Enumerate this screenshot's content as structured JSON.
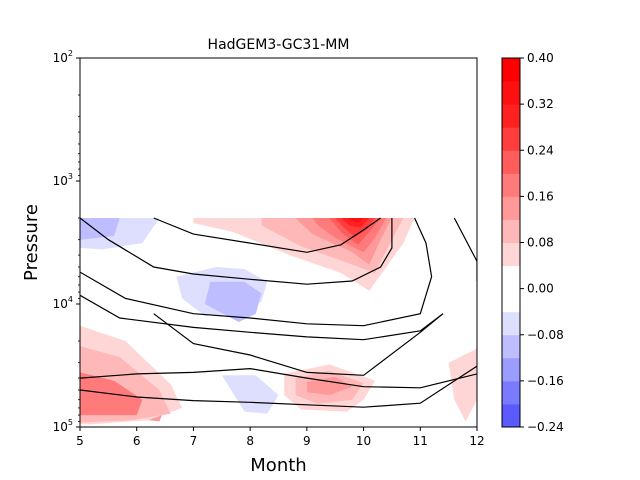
{
  "chart_data": {
    "type": "heatmap",
    "title": "HadGEM3-GC31-MM",
    "xlabel": "Month",
    "ylabel": "Pressure",
    "xlim": [
      5,
      12
    ],
    "ylim": [
      100000,
      100
    ],
    "y_scale": "log",
    "x_ticks": [
      5,
      6,
      7,
      8,
      9,
      10,
      11,
      12
    ],
    "x_tick_labels": [
      "5",
      "6",
      "7",
      "8",
      "9",
      "10",
      "11",
      "12"
    ],
    "y_ticks": [
      100,
      1000,
      10000,
      100000
    ],
    "y_tick_labels": [
      {
        "base": "10",
        "exp": "2"
      },
      {
        "base": "10",
        "exp": "3"
      },
      {
        "base": "10",
        "exp": "4"
      },
      {
        "base": "10",
        "exp": "5"
      }
    ],
    "grid": false,
    "data_top_pressure": 2000,
    "colorbar": {
      "levels": [
        -0.24,
        -0.2,
        -0.16,
        -0.12,
        -0.08,
        -0.04,
        0.0,
        0.04,
        0.08,
        0.12,
        0.16,
        0.2,
        0.24,
        0.28,
        0.32,
        0.36,
        0.4
      ],
      "colors": [
        "#5a5aff",
        "#7a7aff",
        "#9c9cff",
        "#bdbdff",
        "#dedeff",
        "#ffffff",
        "#ffffff",
        "#ffd6d6",
        "#ffb8b8",
        "#ff9999",
        "#ff7a7a",
        "#ff5c5c",
        "#ff3d3d",
        "#ff2020",
        "#ff1010",
        "#ff0000"
      ],
      "tick_values": [
        -0.24,
        -0.16,
        -0.08,
        0.0,
        0.08,
        0.16,
        0.24,
        0.32,
        0.4
      ],
      "tick_labels": [
        "−0.24",
        "−0.16",
        "−0.08",
        "0.00",
        "0.08",
        "0.16",
        "0.24",
        "0.32",
        "0.40"
      ]
    },
    "filled_regions": [
      {
        "value": 0.12,
        "points": [
          [
            5.0,
            30000
          ],
          [
            5.5,
            35000
          ],
          [
            6.2,
            48000
          ],
          [
            6.5,
            70000
          ],
          [
            6.4,
            90000
          ],
          [
            5.6,
            82000
          ],
          [
            5.0,
            88000
          ]
        ]
      },
      {
        "value": 0.04,
        "points": [
          [
            5.0,
            15000
          ],
          [
            5.8,
            20000
          ],
          [
            6.6,
            45000
          ],
          [
            6.8,
            70000
          ],
          [
            6.2,
            88000
          ],
          [
            5.2,
            95000
          ],
          [
            5.0,
            95000
          ]
        ]
      },
      {
        "value": 0.08,
        "points": [
          [
            5.0,
            22000
          ],
          [
            5.7,
            27000
          ],
          [
            6.4,
            50000
          ],
          [
            6.6,
            78000
          ],
          [
            5.9,
            88000
          ],
          [
            5.0,
            92000
          ]
        ]
      },
      {
        "value": 0.16,
        "points": [
          [
            5.0,
            36000
          ],
          [
            5.6,
            42000
          ],
          [
            6.1,
            60000
          ],
          [
            6.0,
            80000
          ],
          [
            5.0,
            80000
          ]
        ]
      },
      {
        "value": -0.04,
        "points": [
          [
            6.5,
            28000
          ],
          [
            7.2,
            33000
          ],
          [
            8.3,
            40000
          ],
          [
            9.0,
            45000
          ],
          [
            9.2,
            60000
          ],
          [
            8.5,
            70000
          ],
          [
            8.0,
            90000
          ],
          [
            7.6,
            90000
          ],
          [
            6.9,
            60000
          ]
        ]
      },
      {
        "value": -0.08,
        "points": [
          [
            7.5,
            38000
          ],
          [
            8.1,
            38000
          ],
          [
            8.5,
            55000
          ],
          [
            8.3,
            78000
          ],
          [
            7.9,
            75000
          ]
        ]
      },
      {
        "value": 0.04,
        "points": [
          [
            8.6,
            37000
          ],
          [
            9.4,
            31000
          ],
          [
            10.2,
            42000
          ],
          [
            10.0,
            60000
          ],
          [
            9.7,
            75000
          ],
          [
            8.9,
            72000
          ],
          [
            8.6,
            55000
          ]
        ]
      },
      {
        "value": 0.08,
        "points": [
          [
            8.8,
            40000
          ],
          [
            9.4,
            35000
          ],
          [
            10.0,
            44000
          ],
          [
            9.8,
            60000
          ],
          [
            9.2,
            65000
          ],
          [
            8.8,
            55000
          ]
        ]
      },
      {
        "value": 0.12,
        "points": [
          [
            9.0,
            43000
          ],
          [
            9.5,
            39000
          ],
          [
            9.8,
            47000
          ],
          [
            9.4,
            55000
          ],
          [
            9.0,
            52000
          ]
        ]
      },
      {
        "value": 0.04,
        "points": [
          [
            11.5,
            30000
          ],
          [
            12.0,
            23000
          ],
          [
            12.0,
            60000
          ],
          [
            11.8,
            90000
          ],
          [
            11.6,
            60000
          ]
        ]
      },
      {
        "value": -0.04,
        "points": [
          [
            5.0,
            2000
          ],
          [
            6.5,
            2000
          ],
          [
            7.8,
            2800
          ],
          [
            8.6,
            3200
          ],
          [
            9.5,
            3600
          ],
          [
            10.3,
            3600
          ],
          [
            10.3,
            4500
          ],
          [
            9.2,
            5500
          ],
          [
            8.7,
            7500
          ],
          [
            8.3,
            11000
          ],
          [
            7.8,
            14000
          ],
          [
            6.9,
            13000
          ],
          [
            6.2,
            10000
          ],
          [
            5.5,
            6500
          ],
          [
            5.0,
            5500
          ]
        ]
      },
      {
        "value": -0.08,
        "points": [
          [
            5.0,
            2000
          ],
          [
            6.4,
            2000
          ],
          [
            6.1,
            3200
          ],
          [
            5.4,
            3600
          ],
          [
            5.0,
            3500
          ]
        ]
      },
      {
        "value": -0.08,
        "points": [
          [
            6.7,
            6000
          ],
          [
            7.4,
            5000
          ],
          [
            7.9,
            5200
          ],
          [
            8.3,
            6600
          ],
          [
            8.2,
            9500
          ],
          [
            7.8,
            12000
          ],
          [
            7.2,
            12500
          ],
          [
            6.8,
            9000
          ]
        ]
      },
      {
        "value": -0.12,
        "points": [
          [
            5.0,
            2000
          ],
          [
            5.7,
            2000
          ],
          [
            5.6,
            2800
          ],
          [
            5.0,
            3000
          ]
        ]
      },
      {
        "value": -0.12,
        "points": [
          [
            7.3,
            6600
          ],
          [
            7.9,
            6600
          ],
          [
            8.2,
            8200
          ],
          [
            8.1,
            12000
          ],
          [
            7.8,
            14000
          ],
          [
            7.2,
            10000
          ]
        ]
      },
      {
        "value": -0.04,
        "points": [
          [
            11.7,
            2000
          ],
          [
            12.0,
            2000
          ],
          [
            12.0,
            5500
          ],
          [
            11.8,
            4300
          ]
        ]
      },
      {
        "value": 0.04,
        "points": [
          [
            7.0,
            2000
          ],
          [
            10.9,
            2000
          ],
          [
            10.7,
            3200
          ],
          [
            10.4,
            5000
          ],
          [
            10.1,
            7800
          ],
          [
            9.6,
            5600
          ],
          [
            8.7,
            4000
          ],
          [
            7.7,
            2600
          ],
          [
            7.0,
            2200
          ]
        ]
      },
      {
        "value": 0.08,
        "points": [
          [
            8.2,
            2000
          ],
          [
            10.7,
            2000
          ],
          [
            10.5,
            3000
          ],
          [
            10.2,
            5600
          ],
          [
            9.7,
            4600
          ],
          [
            8.9,
            3400
          ],
          [
            8.2,
            2300
          ]
        ]
      },
      {
        "value": 0.12,
        "points": [
          [
            8.8,
            2000
          ],
          [
            10.5,
            2000
          ],
          [
            10.3,
            3000
          ],
          [
            10.1,
            4800
          ],
          [
            9.8,
            3800
          ],
          [
            9.1,
            2700
          ]
        ]
      },
      {
        "value": 0.16,
        "points": [
          [
            9.1,
            2000
          ],
          [
            10.4,
            2000
          ],
          [
            10.2,
            2900
          ],
          [
            10.0,
            3800
          ],
          [
            9.5,
            2900
          ],
          [
            9.2,
            2300
          ]
        ]
      },
      {
        "value": 0.2,
        "points": [
          [
            9.4,
            2000
          ],
          [
            10.3,
            2000
          ],
          [
            10.1,
            2600
          ],
          [
            9.9,
            3300
          ],
          [
            9.6,
            2600
          ]
        ]
      },
      {
        "value": 0.24,
        "points": [
          [
            9.5,
            2000
          ],
          [
            10.2,
            2000
          ],
          [
            10.05,
            2500
          ],
          [
            9.85,
            2850
          ],
          [
            9.65,
            2400
          ]
        ]
      },
      {
        "value": 0.28,
        "points": [
          [
            9.6,
            2000
          ],
          [
            10.1,
            2000
          ],
          [
            9.95,
            2400
          ],
          [
            9.75,
            2300
          ]
        ]
      },
      {
        "value": 0.32,
        "points": [
          [
            9.7,
            2000
          ],
          [
            10.0,
            2000
          ],
          [
            9.9,
            2200
          ]
        ]
      }
    ],
    "contour_lines": [
      [
        [
          5.0,
          5500
        ],
        [
          5.8,
          9000
        ],
        [
          7.0,
          12000
        ],
        [
          8.0,
          13000
        ],
        [
          9.0,
          14500
        ],
        [
          10.0,
          15000
        ],
        [
          11.0,
          12000
        ],
        [
          11.2,
          6000
        ],
        [
          11.1,
          3200
        ],
        [
          10.9,
          2000
        ]
      ],
      [
        [
          5.0,
          2000
        ],
        [
          5.5,
          3000
        ],
        [
          6.3,
          5000
        ],
        [
          7.0,
          5700
        ],
        [
          8.0,
          6300
        ],
        [
          9.0,
          6900
        ],
        [
          9.8,
          6500
        ],
        [
          10.3,
          5000
        ],
        [
          10.5,
          3500
        ],
        [
          10.5,
          2000
        ]
      ],
      [
        [
          5.0,
          8500
        ],
        [
          5.7,
          13000
        ],
        [
          7.0,
          15500
        ],
        [
          8.0,
          17000
        ],
        [
          9.0,
          18500
        ],
        [
          10.0,
          19500
        ],
        [
          11.0,
          16500
        ],
        [
          11.4,
          12000
        ]
      ],
      [
        [
          6.3,
          2000
        ],
        [
          7.0,
          2700
        ],
        [
          8.0,
          3200
        ],
        [
          9.0,
          3800
        ],
        [
          9.6,
          3300
        ],
        [
          10.0,
          2500
        ],
        [
          10.3,
          2000
        ]
      ],
      [
        [
          6.3,
          12000
        ],
        [
          7.0,
          21000
        ],
        [
          8.0,
          26000
        ],
        [
          9.0,
          36000
        ],
        [
          10.0,
          38000
        ],
        [
          11.0,
          17000
        ],
        [
          11.4,
          12000
        ]
      ],
      [
        [
          11.6,
          2000
        ],
        [
          12.0,
          4500
        ],
        [
          12.0,
          6500
        ]
      ],
      [
        [
          5.0,
          40000
        ],
        [
          6.0,
          37000
        ],
        [
          7.0,
          36000
        ],
        [
          8.0,
          33500
        ],
        [
          9.0,
          40000
        ],
        [
          10.0,
          47000
        ],
        [
          11.0,
          48000
        ],
        [
          12.0,
          37000
        ]
      ],
      [
        [
          5.0,
          50000
        ],
        [
          6.0,
          57000
        ],
        [
          7.0,
          61000
        ],
        [
          8.0,
          63000
        ],
        [
          9.0,
          66000
        ],
        [
          10.0,
          69000
        ],
        [
          11.0,
          64000
        ],
        [
          12.0,
          32000
        ]
      ]
    ]
  }
}
